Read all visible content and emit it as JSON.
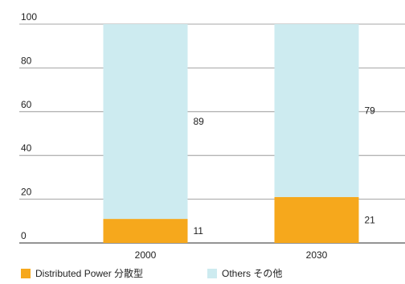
{
  "chart_data": {
    "type": "bar",
    "stacked": true,
    "categories": [
      "2000",
      "2030"
    ],
    "series": [
      {
        "name": "Distributed Power 分散型",
        "values": [
          11,
          21
        ],
        "color": "#F6A81C"
      },
      {
        "name": "Others その他",
        "values": [
          89,
          79
        ],
        "color": "#CDEBF0"
      }
    ],
    "ylim": [
      0,
      100
    ],
    "yticks": [
      "0",
      "20",
      "40",
      "60",
      "80",
      "100"
    ],
    "grid": true,
    "legend_position": "bottom"
  }
}
